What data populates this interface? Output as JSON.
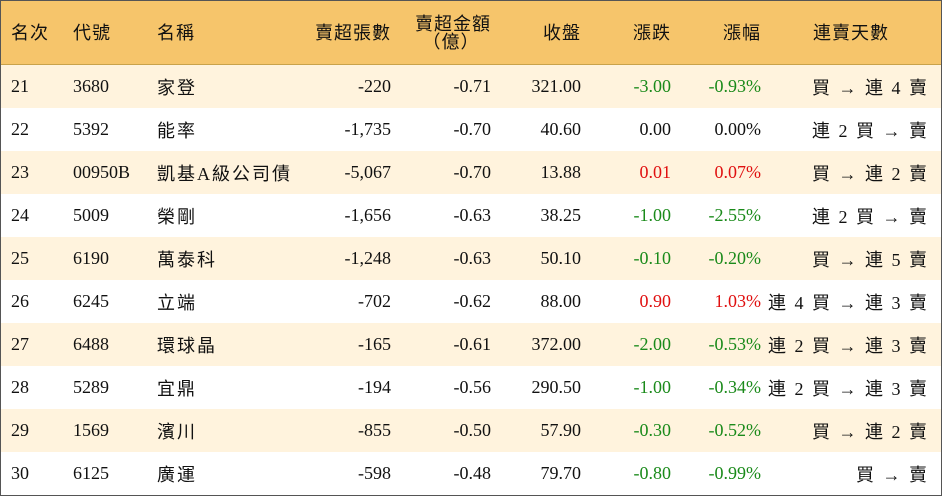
{
  "headers": {
    "rank": "名次",
    "code": "代號",
    "name": "名稱",
    "volume": "賣超張數",
    "amount_line1": "賣超金額",
    "amount_line2": "（億）",
    "close": "收盤",
    "change": "漲跌",
    "percent": "漲幅",
    "days": "連賣天數"
  },
  "colors": {
    "up": "#e01010",
    "down": "#1a8a1a",
    "flat": "#111111",
    "header_bg": "#f6c56b",
    "stripe_bg": "#fff3dd"
  },
  "rows": [
    {
      "rank": "21",
      "code": "3680",
      "name": "家登",
      "volume": "-220",
      "amount": "-0.71",
      "close": "321.00",
      "change": "-3.00",
      "percent": "-0.93%",
      "days": "買 → 連 4 賣",
      "dir": "down"
    },
    {
      "rank": "22",
      "code": "5392",
      "name": "能率",
      "volume": "-1,735",
      "amount": "-0.70",
      "close": "40.60",
      "change": "0.00",
      "percent": "0.00%",
      "days": "連 2 買 → 賣",
      "dir": "flat"
    },
    {
      "rank": "23",
      "code": "00950B",
      "name": "凱基A級公司債",
      "volume": "-5,067",
      "amount": "-0.70",
      "close": "13.88",
      "change": "0.01",
      "percent": "0.07%",
      "days": "買 → 連 2 賣",
      "dir": "up"
    },
    {
      "rank": "24",
      "code": "5009",
      "name": "榮剛",
      "volume": "-1,656",
      "amount": "-0.63",
      "close": "38.25",
      "change": "-1.00",
      "percent": "-2.55%",
      "days": "連 2 買 → 賣",
      "dir": "down"
    },
    {
      "rank": "25",
      "code": "6190",
      "name": "萬泰科",
      "volume": "-1,248",
      "amount": "-0.63",
      "close": "50.10",
      "change": "-0.10",
      "percent": "-0.20%",
      "days": "買 → 連 5 賣",
      "dir": "down"
    },
    {
      "rank": "26",
      "code": "6245",
      "name": "立端",
      "volume": "-702",
      "amount": "-0.62",
      "close": "88.00",
      "change": "0.90",
      "percent": "1.03%",
      "days": "連 4 買 → 連 3 賣",
      "dir": "up"
    },
    {
      "rank": "27",
      "code": "6488",
      "name": "環球晶",
      "volume": "-165",
      "amount": "-0.61",
      "close": "372.00",
      "change": "-2.00",
      "percent": "-0.53%",
      "days": "連 2 買 → 連 3 賣",
      "dir": "down"
    },
    {
      "rank": "28",
      "code": "5289",
      "name": "宜鼎",
      "volume": "-194",
      "amount": "-0.56",
      "close": "290.50",
      "change": "-1.00",
      "percent": "-0.34%",
      "days": "連 2 買 → 連 3 賣",
      "dir": "down"
    },
    {
      "rank": "29",
      "code": "1569",
      "name": "濱川",
      "volume": "-855",
      "amount": "-0.50",
      "close": "57.90",
      "change": "-0.30",
      "percent": "-0.52%",
      "days": "買 → 連 2 賣",
      "dir": "down"
    },
    {
      "rank": "30",
      "code": "6125",
      "name": "廣運",
      "volume": "-598",
      "amount": "-0.48",
      "close": "79.70",
      "change": "-0.80",
      "percent": "-0.99%",
      "days": "買 → 賣",
      "dir": "down"
    }
  ]
}
